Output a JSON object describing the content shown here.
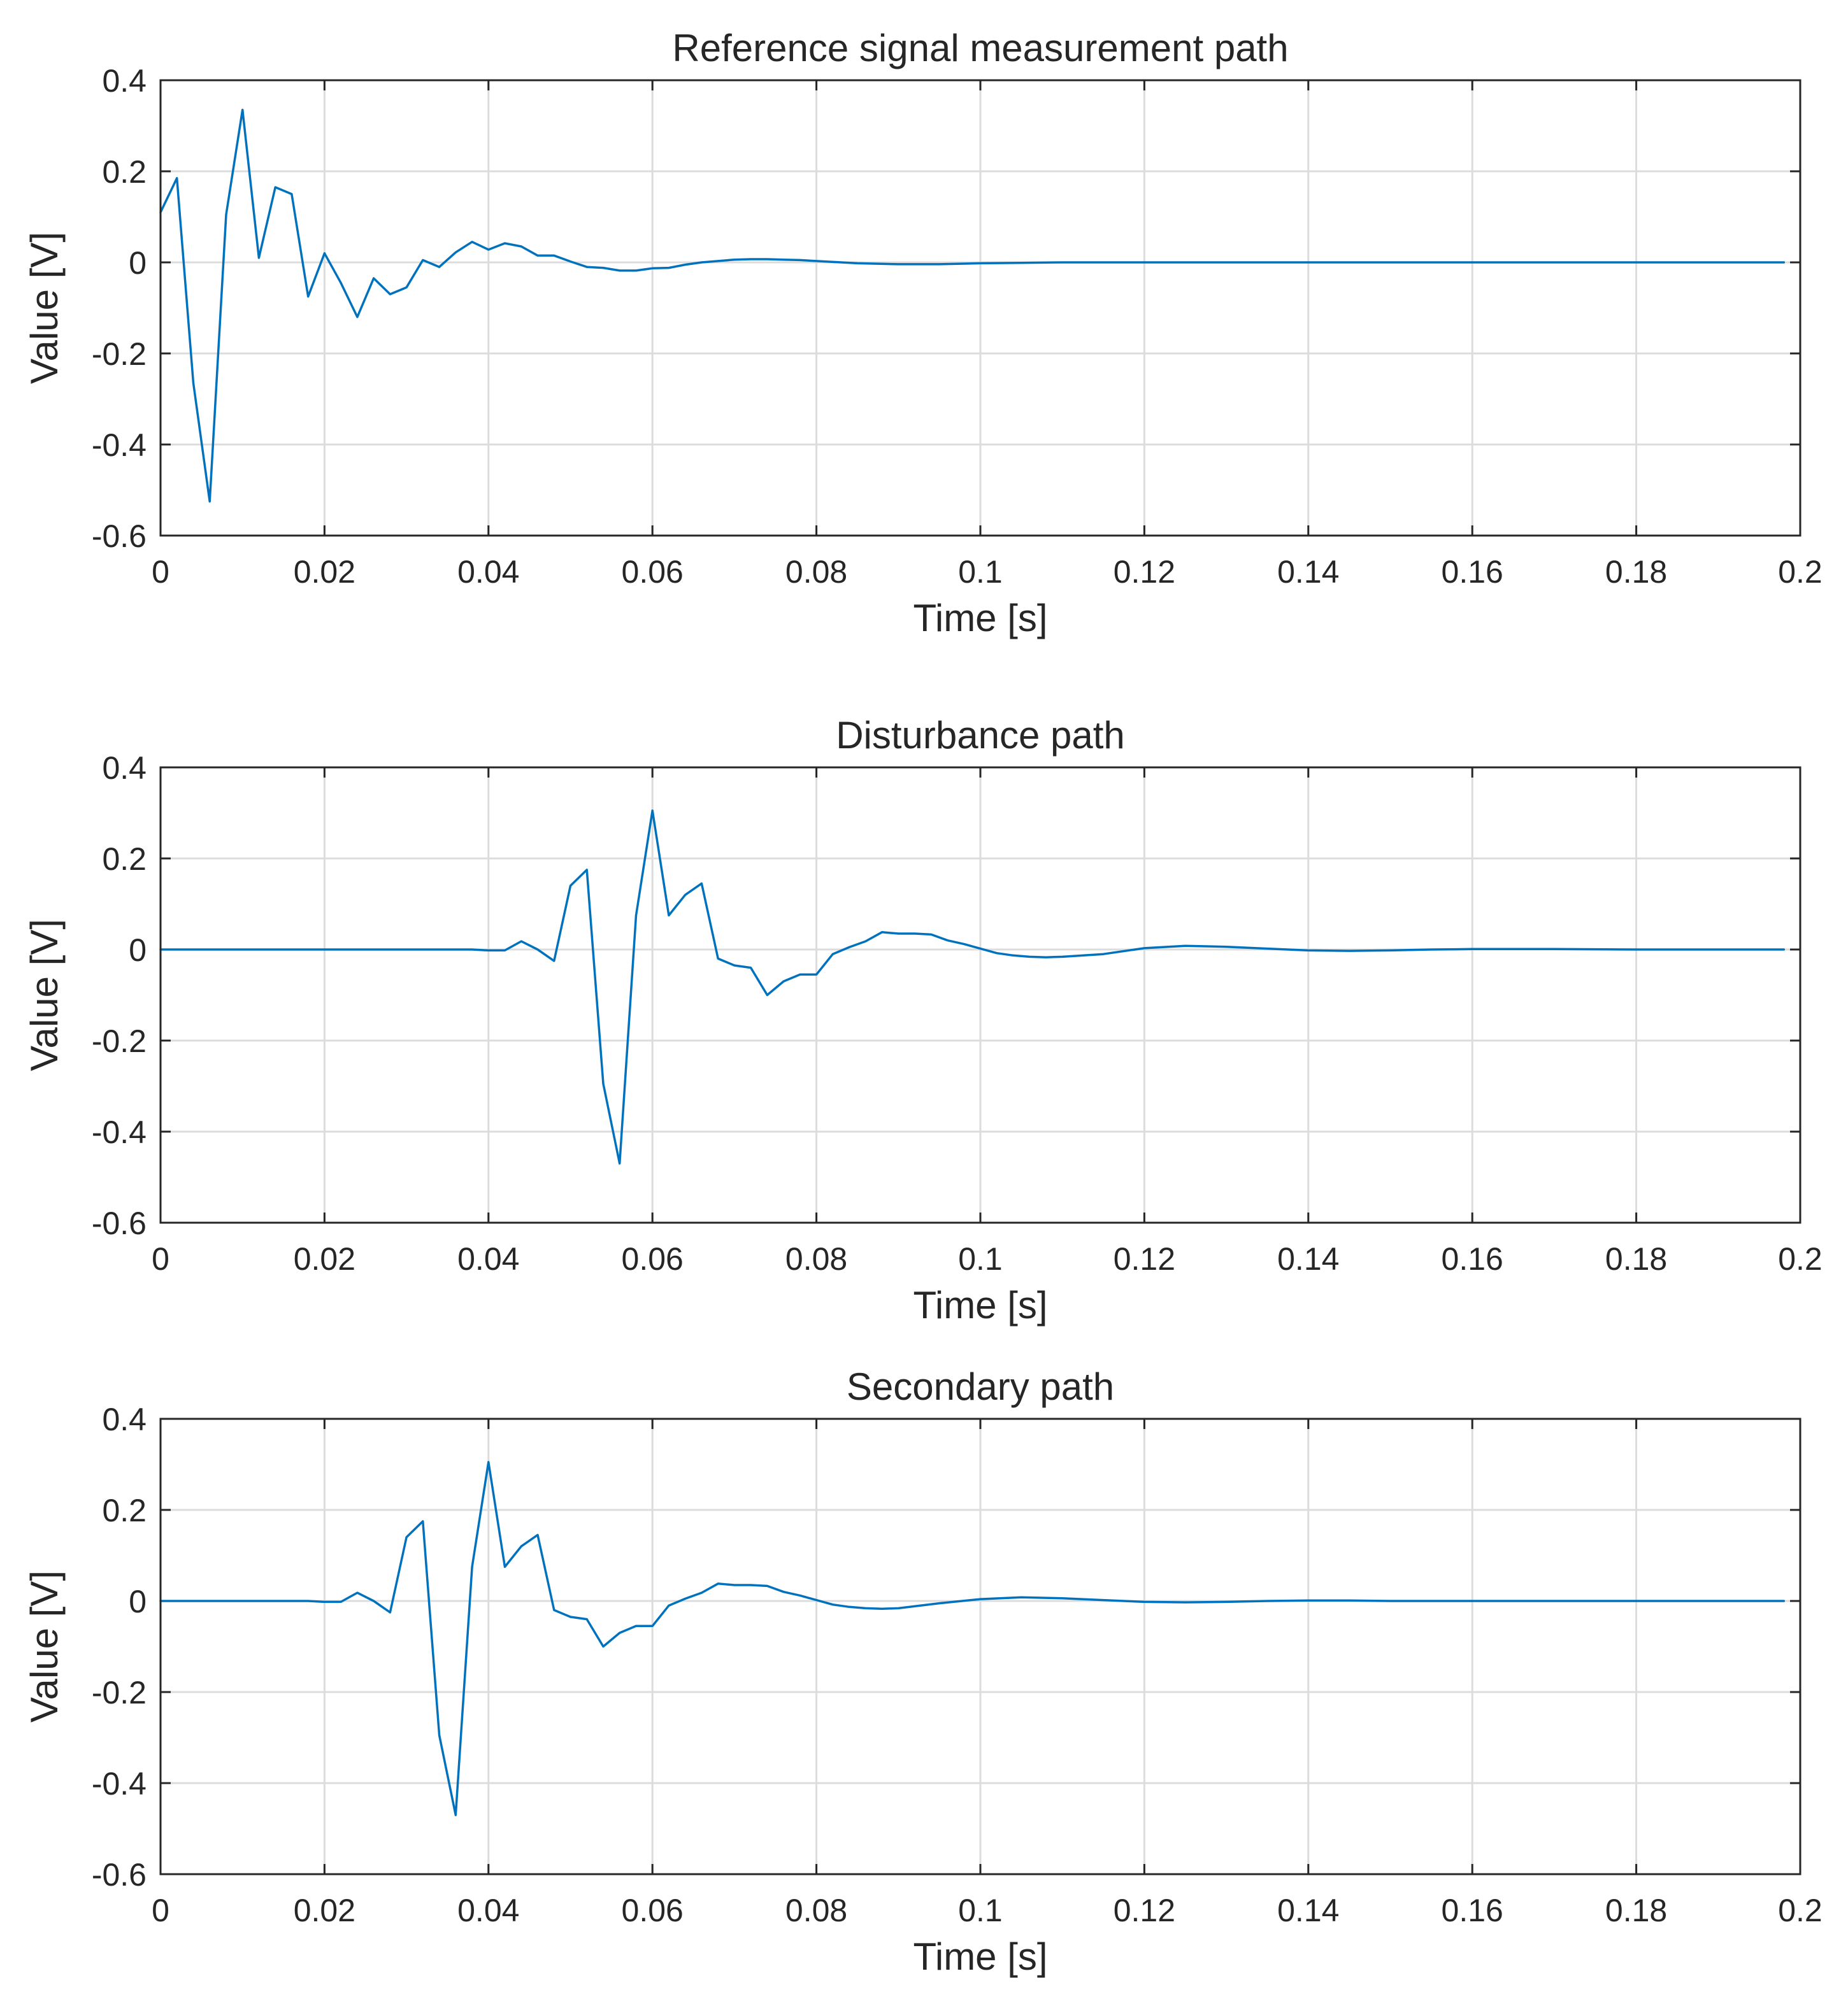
{
  "chart_data": [
    {
      "type": "line",
      "title": "Reference signal measurement path",
      "xlabel": "Time [s]",
      "ylabel": "Value [V]",
      "xlim": [
        0,
        0.2
      ],
      "ylim": [
        -0.6,
        0.4
      ],
      "grid": true,
      "xticks": [
        0,
        0.02,
        0.04,
        0.06,
        0.08,
        0.1,
        0.12,
        0.14,
        0.16,
        0.18,
        0.2
      ],
      "xtick_labels": [
        "0",
        "0.02",
        "0.04",
        "0.06",
        "0.08",
        "0.1",
        "0.12",
        "0.14",
        "0.16",
        "0.18",
        "0.2"
      ],
      "yticks": [
        0.4,
        0.2,
        0,
        -0.2,
        -0.4,
        -0.6
      ],
      "ytick_labels": [
        "0.4",
        "0.2",
        "0",
        "-0.2",
        "-0.4",
        "-0.6"
      ],
      "series": [
        {
          "name": "Reference signal measurement path",
          "color": "#0072BD",
          "x": [
            0,
            0.002,
            0.004,
            0.006,
            0.008,
            0.01,
            0.012,
            0.014,
            0.016,
            0.018,
            0.02,
            0.022,
            0.024,
            0.026,
            0.028,
            0.03,
            0.032,
            0.034,
            0.036,
            0.038,
            0.04,
            0.042,
            0.044,
            0.046,
            0.048,
            0.05,
            0.052,
            0.054,
            0.056,
            0.058,
            0.06,
            0.062,
            0.064,
            0.066,
            0.068,
            0.07,
            0.072,
            0.074,
            0.076,
            0.078,
            0.08,
            0.085,
            0.09,
            0.095,
            0.1,
            0.105,
            0.11,
            0.115,
            0.12,
            0.13,
            0.14,
            0.15,
            0.16,
            0.17,
            0.18,
            0.19,
            0.198
          ],
          "values": [
            0.11,
            0.185,
            -0.265,
            -0.525,
            0.105,
            0.335,
            0.01,
            0.165,
            0.15,
            -0.075,
            0.02,
            -0.045,
            -0.12,
            -0.035,
            -0.07,
            -0.055,
            0.005,
            -0.01,
            0.022,
            0.045,
            0.028,
            0.042,
            0.035,
            0.015,
            0.015,
            0.002,
            -0.01,
            -0.012,
            -0.018,
            -0.018,
            -0.013,
            -0.012,
            -0.005,
            0.0,
            0.003,
            0.006,
            0.007,
            0.007,
            0.006,
            0.005,
            0.003,
            -0.002,
            -0.004,
            -0.004,
            -0.002,
            -0.001,
            0.0,
            0.0,
            0.0,
            0.0,
            0.0,
            0.0,
            0.0,
            0.0,
            0.0,
            0.0,
            0.0
          ]
        }
      ]
    },
    {
      "type": "line",
      "title": "Disturbance path",
      "xlabel": "Time [s]",
      "ylabel": "Value [V]",
      "xlim": [
        0,
        0.2
      ],
      "ylim": [
        -0.6,
        0.4
      ],
      "grid": true,
      "xticks": [
        0,
        0.02,
        0.04,
        0.06,
        0.08,
        0.1,
        0.12,
        0.14,
        0.16,
        0.18,
        0.2
      ],
      "xtick_labels": [
        "0",
        "0.02",
        "0.04",
        "0.06",
        "0.08",
        "0.1",
        "0.12",
        "0.14",
        "0.16",
        "0.18",
        "0.2"
      ],
      "yticks": [
        0.4,
        0.2,
        0,
        -0.2,
        -0.4,
        -0.6
      ],
      "ytick_labels": [
        "0.4",
        "0.2",
        "0",
        "-0.2",
        "-0.4",
        "-0.6"
      ],
      "series": [
        {
          "name": "Disturbance path",
          "color": "#0072BD",
          "x": [
            0,
            0.02,
            0.038,
            0.04,
            0.042,
            0.044,
            0.046,
            0.048,
            0.05,
            0.052,
            0.054,
            0.056,
            0.058,
            0.06,
            0.062,
            0.064,
            0.066,
            0.068,
            0.07,
            0.072,
            0.074,
            0.076,
            0.078,
            0.08,
            0.082,
            0.084,
            0.086,
            0.088,
            0.09,
            0.092,
            0.094,
            0.096,
            0.098,
            0.1,
            0.102,
            0.104,
            0.106,
            0.108,
            0.11,
            0.115,
            0.12,
            0.125,
            0.13,
            0.135,
            0.14,
            0.145,
            0.15,
            0.155,
            0.16,
            0.17,
            0.18,
            0.19,
            0.198
          ],
          "values": [
            0,
            0,
            0,
            -0.002,
            -0.002,
            0.018,
            0.0,
            -0.025,
            0.14,
            0.175,
            -0.295,
            -0.47,
            0.075,
            0.305,
            0.075,
            0.12,
            0.145,
            -0.02,
            -0.035,
            -0.04,
            -0.1,
            -0.07,
            -0.055,
            -0.055,
            -0.01,
            0.005,
            0.018,
            0.038,
            0.035,
            0.035,
            0.033,
            0.02,
            0.012,
            0.002,
            -0.008,
            -0.013,
            -0.016,
            -0.017,
            -0.016,
            -0.01,
            0.003,
            0.008,
            0.006,
            0.002,
            -0.002,
            -0.003,
            -0.002,
            0.0,
            0.001,
            0.001,
            0.0,
            0.0,
            0.0
          ]
        }
      ]
    },
    {
      "type": "line",
      "title": "Secondary path",
      "xlabel": "Time [s]",
      "ylabel": "Value [V]",
      "xlim": [
        0,
        0.2
      ],
      "ylim": [
        -0.6,
        0.4
      ],
      "grid": true,
      "xticks": [
        0,
        0.02,
        0.04,
        0.06,
        0.08,
        0.1,
        0.12,
        0.14,
        0.16,
        0.18,
        0.2
      ],
      "xtick_labels": [
        "0",
        "0.02",
        "0.04",
        "0.06",
        "0.08",
        "0.1",
        "0.12",
        "0.14",
        "0.16",
        "0.18",
        "0.2"
      ],
      "yticks": [
        0.4,
        0.2,
        0,
        -0.2,
        -0.4,
        -0.6
      ],
      "ytick_labels": [
        "0.4",
        "0.2",
        "0",
        "-0.2",
        "-0.4",
        "-0.6"
      ],
      "series": [
        {
          "name": "Secondary path",
          "color": "#0072BD",
          "x": [
            0,
            0.018,
            0.02,
            0.022,
            0.024,
            0.026,
            0.028,
            0.03,
            0.032,
            0.034,
            0.036,
            0.038,
            0.04,
            0.042,
            0.044,
            0.046,
            0.048,
            0.05,
            0.052,
            0.054,
            0.056,
            0.058,
            0.06,
            0.062,
            0.064,
            0.066,
            0.068,
            0.07,
            0.072,
            0.074,
            0.076,
            0.078,
            0.08,
            0.082,
            0.084,
            0.086,
            0.088,
            0.09,
            0.095,
            0.1,
            0.105,
            0.11,
            0.115,
            0.12,
            0.125,
            0.13,
            0.135,
            0.14,
            0.145,
            0.15,
            0.16,
            0.17,
            0.18,
            0.19,
            0.198
          ],
          "values": [
            0,
            0,
            -0.002,
            -0.002,
            0.018,
            0.0,
            -0.025,
            0.14,
            0.175,
            -0.295,
            -0.47,
            0.075,
            0.305,
            0.075,
            0.12,
            0.145,
            -0.02,
            -0.035,
            -0.04,
            -0.1,
            -0.07,
            -0.055,
            -0.055,
            -0.01,
            0.005,
            0.018,
            0.038,
            0.035,
            0.035,
            0.033,
            0.02,
            0.012,
            0.002,
            -0.008,
            -0.013,
            -0.016,
            -0.017,
            -0.016,
            -0.005,
            0.004,
            0.008,
            0.006,
            0.002,
            -0.002,
            -0.003,
            -0.002,
            0.0,
            0.001,
            0.001,
            0.0,
            0.0,
            0.0,
            0.0,
            0.0,
            0.0
          ]
        }
      ]
    }
  ]
}
